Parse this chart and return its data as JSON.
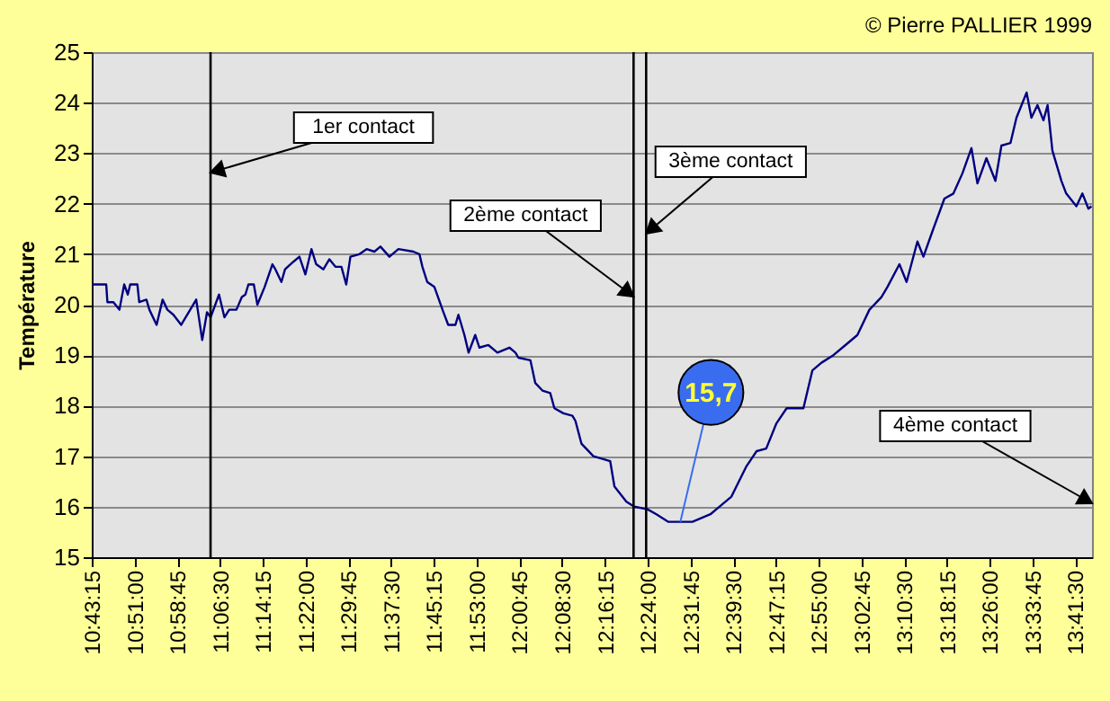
{
  "chart_data": {
    "type": "line",
    "ylabel": "Température",
    "x": [
      10.721,
      10.7645,
      10.7681,
      10.7862,
      10.8044,
      10.8188,
      10.8297,
      10.837,
      10.8587,
      10.8642,
      10.8859,
      10.8949,
      10.9167,
      10.9348,
      10.9493,
      10.9675,
      10.991,
      11.0182,
      11.0363,
      11.0545,
      11.0689,
      11.0798,
      11.1052,
      11.1215,
      11.136,
      11.1578,
      11.1741,
      11.1849,
      11.194,
      11.2103,
      11.2211,
      11.2429,
      11.2665,
      11.2755,
      11.2937,
      11.3046,
      11.3299,
      11.348,
      11.3661,
      11.3843,
      11.3988,
      11.4205,
      11.4386,
      11.4568,
      11.4749,
      11.4894,
      11.5021,
      11.5292,
      11.551,
      11.5745,
      11.5927,
      11.6199,
      11.6471,
      11.6924,
      11.7105,
      11.7195,
      11.734,
      11.7558,
      11.783,
      11.7975,
      11.8192,
      11.8283,
      11.8464,
      11.8591,
      11.879,
      11.8917,
      11.9189,
      11.9461,
      11.9823,
      12.0005,
      12.0095,
      12.0457,
      12.0603,
      12.082,
      12.1056,
      12.1182,
      12.1454,
      12.1726,
      12.1817,
      12.1998,
      12.236,
      12.2868,
      12.2995,
      12.3357,
      12.3593,
      12.3992,
      12.4263,
      12.4626,
      12.5351,
      12.5894,
      12.6075,
      12.6529,
      12.6982,
      12.729,
      12.758,
      12.7888,
      12.8196,
      12.8703,
      12.8975,
      12.9247,
      12.9609,
      12.9972,
      13.0334,
      13.0697,
      13.1059,
      13.124,
      13.1603,
      13.182,
      13.2147,
      13.2328,
      13.2599,
      13.2962,
      13.3234,
      13.3506,
      13.3778,
      13.3959,
      13.4231,
      13.4503,
      13.4684,
      13.4956,
      13.5138,
      13.5445,
      13.559,
      13.5772,
      13.5953,
      13.6079,
      13.6224,
      13.6496,
      13.6641,
      13.6949,
      13.713,
      13.7312,
      13.7403
    ],
    "series": [
      {
        "color": "#000080",
        "values": [
          20.4,
          20.4,
          20.05,
          20.05,
          19.9,
          20.4,
          20.2,
          20.4,
          20.4,
          20.05,
          20.1,
          19.9,
          19.6,
          20.1,
          19.9,
          19.8,
          19.6,
          19.9,
          20.1,
          19.3,
          19.85,
          19.75,
          20.2,
          19.75,
          19.9,
          19.9,
          20.15,
          20.2,
          20.4,
          20.4,
          20.0,
          20.35,
          20.8,
          20.7,
          20.45,
          20.7,
          20.85,
          20.95,
          20.6,
          21.1,
          20.8,
          20.7,
          20.9,
          20.75,
          20.75,
          20.4,
          20.95,
          21.0,
          21.1,
          21.05,
          21.15,
          20.95,
          21.1,
          21.05,
          21.0,
          20.75,
          20.45,
          20.35,
          19.85,
          19.6,
          19.6,
          19.8,
          19.4,
          19.05,
          19.4,
          19.15,
          19.2,
          19.05,
          19.15,
          19.05,
          18.95,
          18.9,
          18.45,
          18.3,
          18.25,
          17.95,
          17.85,
          17.8,
          17.7,
          17.25,
          17.0,
          16.9,
          16.4,
          16.1,
          16.0,
          15.95,
          15.85,
          15.7,
          15.7,
          15.85,
          15.95,
          16.2,
          16.8,
          17.1,
          17.15,
          17.65,
          17.95,
          17.95,
          18.7,
          18.85,
          19.0,
          19.2,
          19.4,
          19.9,
          20.15,
          20.35,
          20.8,
          20.45,
          21.25,
          20.95,
          21.45,
          22.1,
          22.2,
          22.6,
          23.1,
          22.4,
          22.9,
          22.45,
          23.15,
          23.2,
          23.7,
          24.2,
          23.7,
          23.95,
          23.65,
          23.95,
          23.05,
          22.45,
          22.2,
          21.95,
          22.2,
          21.9,
          21.95
        ]
      }
    ],
    "xlim": [
      10.7208,
      13.742
    ],
    "ylim": [
      15,
      25
    ],
    "xticks": [
      {
        "value": 10.7208,
        "label": "10:43:15"
      },
      {
        "value": 10.85,
        "label": "10:51:00"
      },
      {
        "value": 10.9792,
        "label": "10:58:45"
      },
      {
        "value": 11.1083,
        "label": "11:06:30"
      },
      {
        "value": 11.2375,
        "label": "11:14:15"
      },
      {
        "value": 11.3667,
        "label": "11:22:00"
      },
      {
        "value": 11.4958,
        "label": "11:29:45"
      },
      {
        "value": 11.625,
        "label": "11:37:30"
      },
      {
        "value": 11.7542,
        "label": "11:45:15"
      },
      {
        "value": 11.8833,
        "label": "11:53:00"
      },
      {
        "value": 12.0125,
        "label": "12:00:45"
      },
      {
        "value": 12.1417,
        "label": "12:08:30"
      },
      {
        "value": 12.2708,
        "label": "12:16:15"
      },
      {
        "value": 12.4,
        "label": "12:24:00"
      },
      {
        "value": 12.5292,
        "label": "12:31:45"
      },
      {
        "value": 12.6583,
        "label": "12:39:30"
      },
      {
        "value": 12.7875,
        "label": "12:47:15"
      },
      {
        "value": 12.9167,
        "label": "12:55:00"
      },
      {
        "value": 13.0458,
        "label": "13:02:45"
      },
      {
        "value": 13.175,
        "label": "13:10:30"
      },
      {
        "value": 13.3042,
        "label": "13:18:15"
      },
      {
        "value": 13.4333,
        "label": "13:26:00"
      },
      {
        "value": 13.5625,
        "label": "13:33:45"
      },
      {
        "value": 13.6917,
        "label": "13:41:30"
      }
    ],
    "yticks": [
      15,
      16,
      17,
      18,
      19,
      20,
      21,
      22,
      23,
      24,
      25
    ],
    "grid": "y",
    "ref_lines": [
      {
        "axis": "x",
        "value": 11.0796,
        "label": "1er contact",
        "color": "#000000"
      },
      {
        "axis": "x",
        "value": 12.3573,
        "label": "2ème contact",
        "color": "#000000"
      },
      {
        "axis": "x",
        "value": 12.3953,
        "label": "3ème contact",
        "color": "#000000"
      }
    ],
    "annotations": [
      "© Pierre PALLIER 1999",
      "4ème contact",
      {
        "text": "15,7",
        "x": 12.4986,
        "y": 15.7
      }
    ]
  }
}
